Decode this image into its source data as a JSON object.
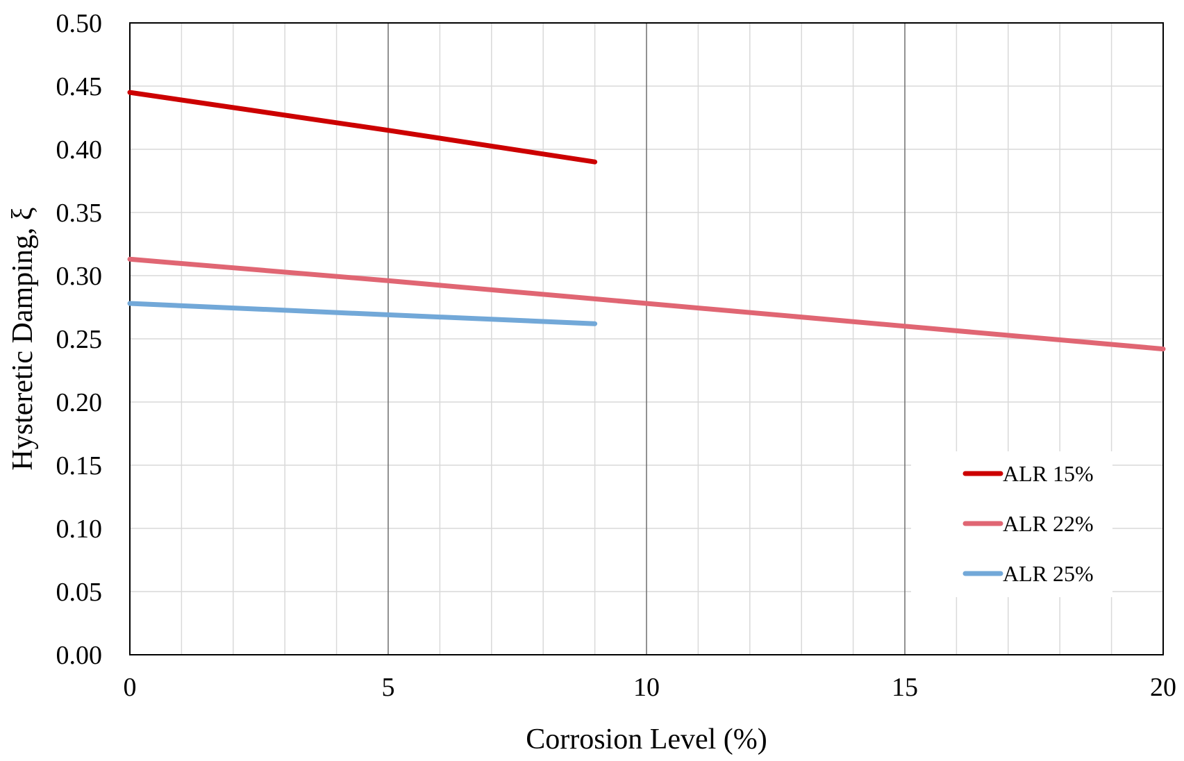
{
  "chart_data": {
    "type": "line",
    "title": "",
    "xlabel": "Corrosion Level (%)",
    "ylabel": "Hysteretic Damping, ξ",
    "xlim": [
      0,
      20
    ],
    "ylim": [
      0,
      0.5
    ],
    "x_major_ticks": [
      0,
      5,
      10,
      15,
      20
    ],
    "x_tick_labels": [
      "0",
      "5",
      "10",
      "15",
      "20"
    ],
    "x_minor_step": 1,
    "y_ticks": [
      0,
      0.05,
      0.1,
      0.15,
      0.2,
      0.25,
      0.3,
      0.35,
      0.4,
      0.45,
      0.5
    ],
    "y_tick_labels": [
      "0.00",
      "0.05",
      "0.10",
      "0.15",
      "0.20",
      "0.25",
      "0.30",
      "0.35",
      "0.40",
      "0.45",
      "0.50"
    ],
    "grid": true,
    "legend_position": "bottom-right",
    "series": [
      {
        "name": "ALR 15%",
        "color": "#cc0000",
        "x": [
          0,
          5,
          9
        ],
        "y": [
          0.445,
          0.415,
          0.39
        ]
      },
      {
        "name": "ALR 22%",
        "color": "#e06673",
        "x": [
          0,
          5,
          10,
          15,
          20
        ],
        "y": [
          0.313,
          0.296,
          0.278,
          0.26,
          0.242
        ]
      },
      {
        "name": "ALR 25%",
        "color": "#72a8d8",
        "x": [
          0,
          5,
          9
        ],
        "y": [
          0.278,
          0.269,
          0.262
        ]
      }
    ]
  }
}
